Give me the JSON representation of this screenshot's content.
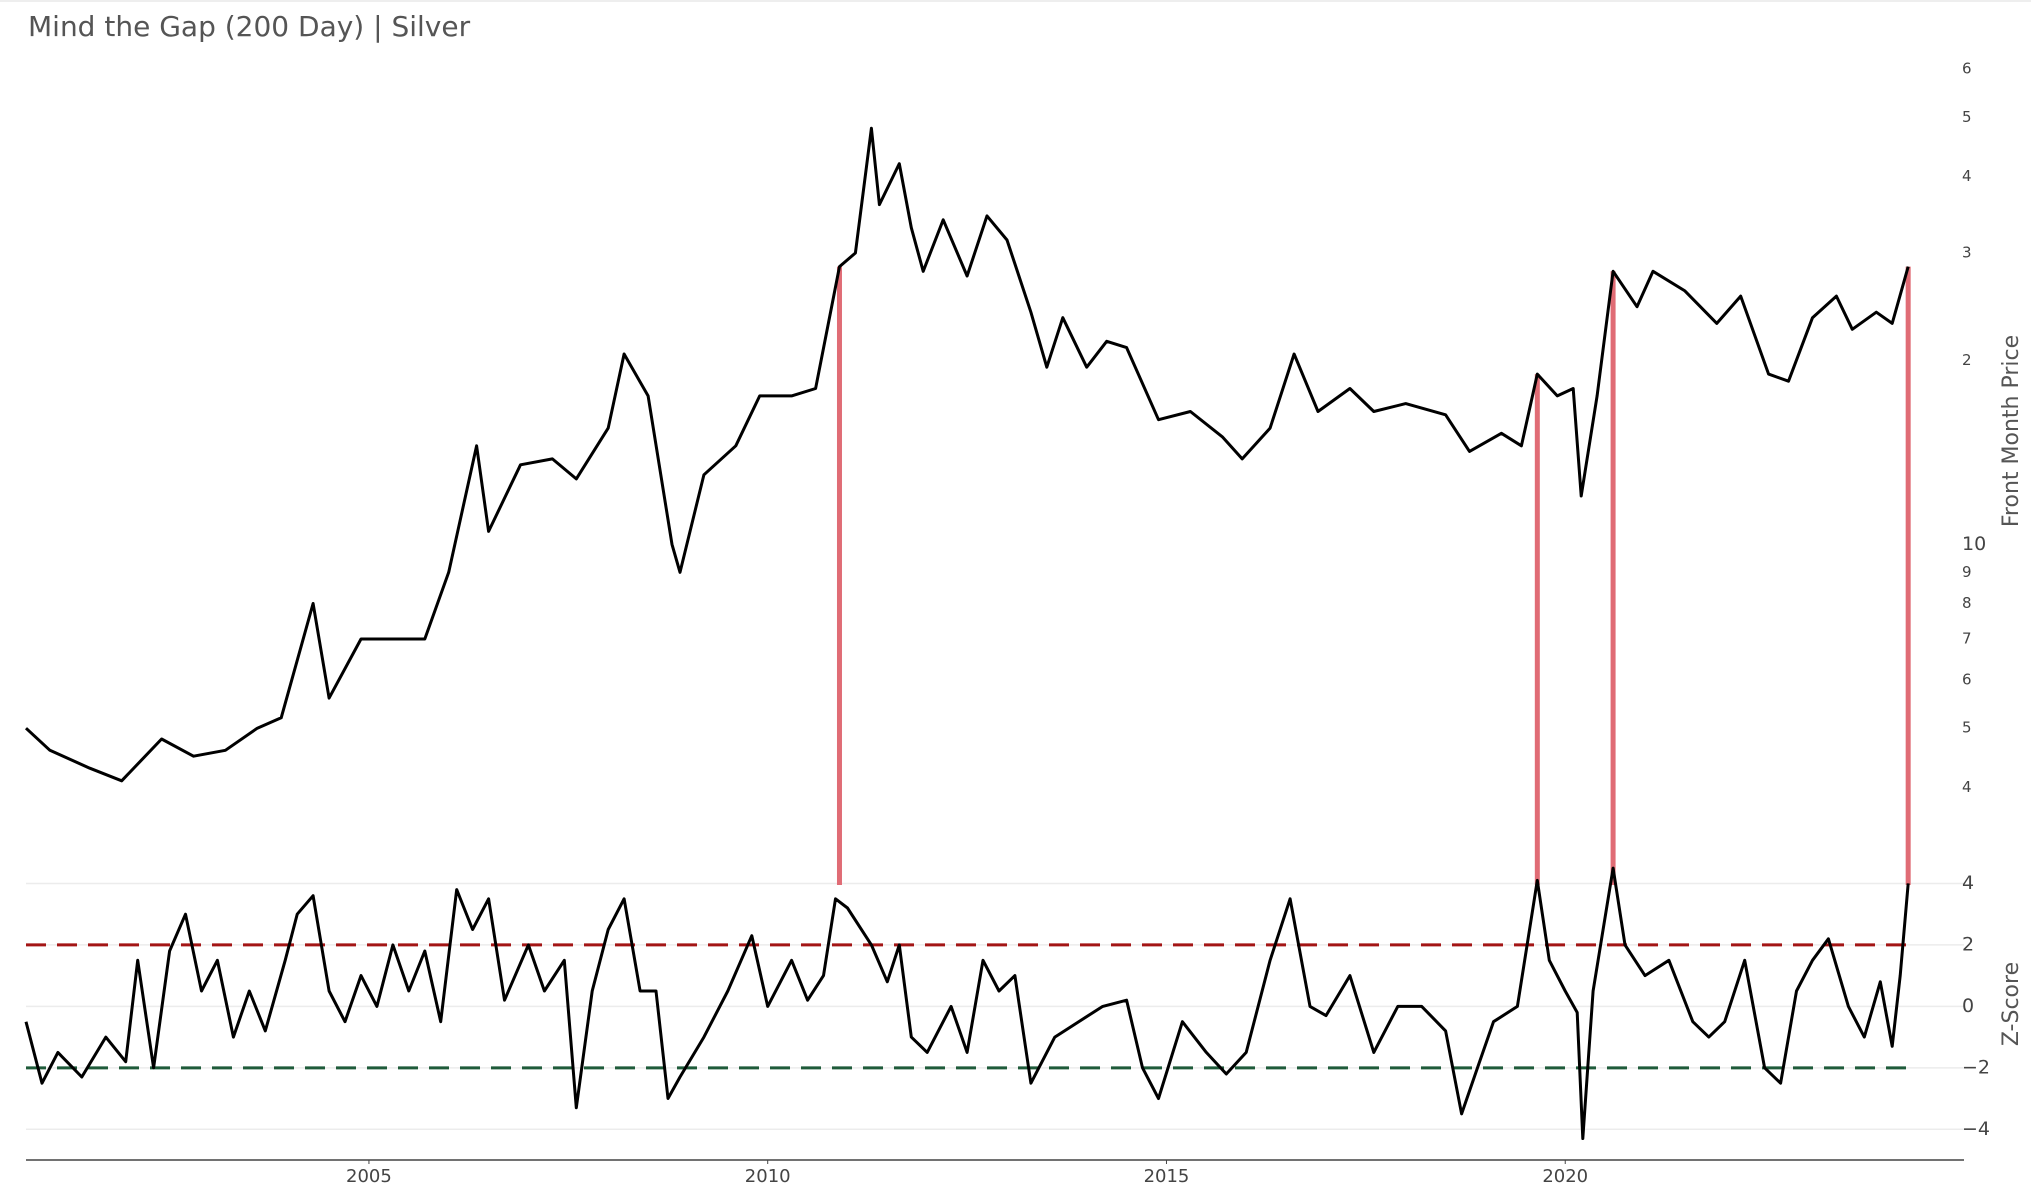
{
  "chart_data": [
    {
      "type": "line",
      "title": "Mind the Gap (200 Day) | Silver",
      "y_label": "Front Month Price",
      "log_scale": true,
      "color": "#000000",
      "x": [
        2000.7,
        2001.0,
        2001.5,
        2001.9,
        2002.4,
        2002.8,
        2003.2,
        2003.6,
        2003.9,
        2004.3,
        2004.5,
        2004.9,
        2005.3,
        2005.7,
        2006.0,
        2006.35,
        2006.5,
        2006.9,
        2007.3,
        2007.6,
        2008.0,
        2008.2,
        2008.5,
        2008.8,
        2008.9,
        2009.2,
        2009.6,
        2009.9,
        2010.3,
        2010.6,
        2010.9,
        2011.1,
        2011.3,
        2011.4,
        2011.65,
        2011.8,
        2011.95,
        2012.2,
        2012.5,
        2012.75,
        2013.0,
        2013.3,
        2013.5,
        2013.7,
        2014.0,
        2014.25,
        2014.5,
        2014.9,
        2015.3,
        2015.7,
        2015.95,
        2016.3,
        2016.6,
        2016.9,
        2017.3,
        2017.6,
        2018.0,
        2018.5,
        2018.8,
        2019.2,
        2019.45,
        2019.65,
        2019.9,
        2020.1,
        2020.2,
        2020.4,
        2020.6,
        2020.9,
        2021.1,
        2021.5,
        2021.9,
        2022.2,
        2022.55,
        2022.8,
        2023.1,
        2023.4,
        2023.6,
        2023.9,
        2024.1,
        2024.3
      ],
      "values": [
        5.0,
        4.6,
        4.3,
        4.1,
        4.8,
        4.5,
        4.6,
        5.0,
        5.2,
        8.0,
        5.6,
        7.0,
        7.0,
        7.0,
        9.0,
        14.5,
        10.5,
        13.5,
        13.8,
        12.8,
        15.5,
        20.5,
        17.5,
        10,
        9,
        13,
        14.5,
        17.5,
        17.5,
        18,
        28.5,
        30,
        48,
        36,
        42,
        33,
        28,
        34,
        27.5,
        34.5,
        31.5,
        24,
        19.5,
        23.5,
        19.5,
        21.5,
        21,
        16,
        16.5,
        15,
        13.8,
        15.5,
        20.5,
        16.5,
        18,
        16.5,
        17,
        16.3,
        14.2,
        15.2,
        14.5,
        19,
        17.5,
        18,
        12,
        17.5,
        28,
        24.5,
        28,
        26,
        23,
        25.5,
        19,
        18.5,
        23.5,
        25.5,
        22.5,
        24,
        23,
        28.5
      ],
      "xlim": [
        2000.7,
        2025.0
      ],
      "ylim": [
        3.1,
        64
      ],
      "yticks": [
        4,
        5,
        6,
        7,
        8,
        9,
        10,
        {
          "value": 20,
          "label": "2"
        },
        {
          "value": 30,
          "label": "3"
        },
        {
          "value": 40,
          "label": "4"
        },
        {
          "value": 50,
          "label": "5"
        },
        {
          "value": 60,
          "label": "6"
        }
      ],
      "signals": {
        "color": "#e06c75",
        "x": [
          2010.9,
          2019.65,
          2020.6,
          2024.3
        ]
      }
    },
    {
      "type": "line",
      "y_label": "Z-Score",
      "color": "#000000",
      "grid": true,
      "x": [
        2000.7,
        2000.9,
        2001.1,
        2001.4,
        2001.7,
        2001.95,
        2002.1,
        2002.3,
        2002.5,
        2002.7,
        2002.9,
        2003.1,
        2003.3,
        2003.5,
        2003.7,
        2003.95,
        2004.1,
        2004.3,
        2004.5,
        2004.7,
        2004.9,
        2005.1,
        2005.3,
        2005.5,
        2005.7,
        2005.9,
        2006.1,
        2006.3,
        2006.5,
        2006.7,
        2007.0,
        2007.2,
        2007.45,
        2007.6,
        2007.8,
        2008.0,
        2008.2,
        2008.4,
        2008.6,
        2008.75,
        2008.9,
        2009.2,
        2009.5,
        2009.8,
        2010.0,
        2010.3,
        2010.5,
        2010.7,
        2010.85,
        2011.0,
        2011.3,
        2011.5,
        2011.65,
        2011.8,
        2012.0,
        2012.3,
        2012.5,
        2012.7,
        2012.9,
        2013.1,
        2013.3,
        2013.6,
        2013.9,
        2014.2,
        2014.5,
        2014.7,
        2014.9,
        2015.2,
        2015.5,
        2015.75,
        2016.0,
        2016.3,
        2016.55,
        2016.8,
        2017.0,
        2017.3,
        2017.6,
        2017.9,
        2018.2,
        2018.5,
        2018.7,
        2018.9,
        2019.1,
        2019.4,
        2019.65,
        2019.8,
        2020.0,
        2020.15,
        2020.22,
        2020.35,
        2020.6,
        2020.75,
        2021.0,
        2021.3,
        2021.6,
        2021.8,
        2022.0,
        2022.25,
        2022.5,
        2022.7,
        2022.9,
        2023.1,
        2023.3,
        2023.55,
        2023.75,
        2023.95,
        2024.1,
        2024.2,
        2024.3
      ],
      "values": [
        -0.5,
        -2.5,
        -1.5,
        -2.3,
        -1.0,
        -1.8,
        1.5,
        -2.0,
        1.8,
        3.0,
        0.5,
        1.5,
        -1.0,
        0.5,
        -0.8,
        1.5,
        3.0,
        3.6,
        0.5,
        -0.5,
        1.0,
        0.0,
        2.0,
        0.5,
        1.8,
        -0.5,
        3.8,
        2.5,
        3.5,
        0.2,
        2.0,
        0.5,
        1.5,
        -3.3,
        0.5,
        2.5,
        3.5,
        0.5,
        0.5,
        -3.0,
        -2.3,
        -1.0,
        0.5,
        2.3,
        0.0,
        1.5,
        0.2,
        1.0,
        3.5,
        3.2,
        2.0,
        0.8,
        2.0,
        -1.0,
        -1.5,
        0.0,
        -1.5,
        1.5,
        0.5,
        1.0,
        -2.5,
        -1.0,
        -0.5,
        0.0,
        0.2,
        -2.0,
        -3.0,
        -0.5,
        -1.5,
        -2.2,
        -1.5,
        1.5,
        3.5,
        0.0,
        -0.3,
        1.0,
        -1.5,
        0.0,
        0.0,
        -0.8,
        -3.5,
        -2.0,
        -0.5,
        0.0,
        4.1,
        1.5,
        0.5,
        -0.2,
        -4.3,
        0.5,
        4.5,
        2.0,
        1.0,
        1.5,
        -0.5,
        -1.0,
        -0.5,
        1.5,
        -2.0,
        -2.5,
        0.5,
        1.5,
        2.2,
        0.0,
        -1.0,
        0.8,
        -1.3,
        1.0,
        4.0
      ],
      "xlim": [
        2000.7,
        2025.0
      ],
      "ylim": [
        -5,
        4.6
      ],
      "yticks": [
        {
          "value": -4,
          "label": "−4"
        },
        {
          "value": -2,
          "label": "−2"
        },
        0,
        2,
        4
      ],
      "xticks": [
        2005,
        2010,
        2015,
        2020
      ],
      "thresholds": [
        {
          "value": 2,
          "color": "#a31515"
        },
        {
          "value": -2,
          "color": "#1f5b3a"
        }
      ]
    }
  ]
}
